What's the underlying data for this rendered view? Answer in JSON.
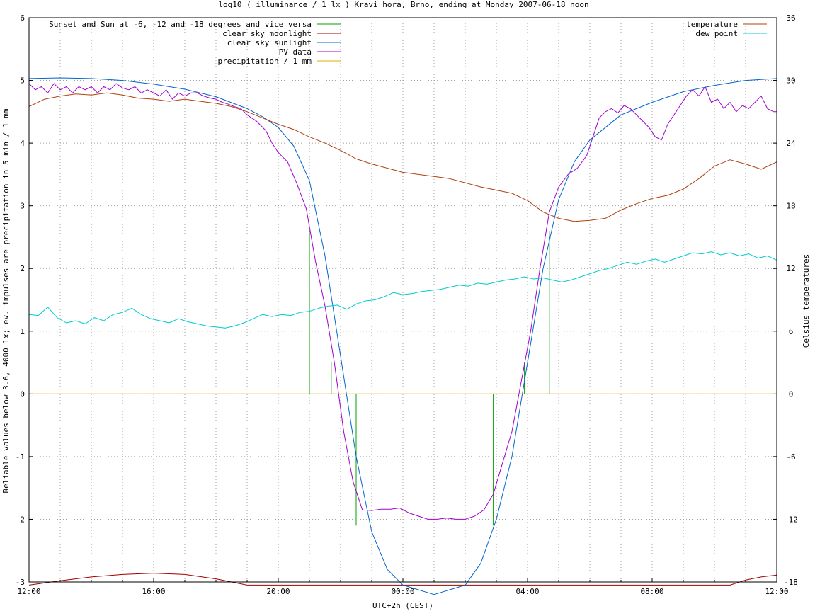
{
  "chart_data": {
    "type": "line",
    "title": "log10 ( illuminance / 1 lx ) Kravi hora, Brno, ending at Monday 2007-06-18 noon",
    "xlabel": "UTC+2h (CEST)",
    "ylabel": "Reliable values below 3.6, 4000 lx; ev. impulses are precipitation in 5 min / 1 mm",
    "y2label": "Celsius temperatures",
    "x_unit": "hours since 12:00 (displayed as clock time)",
    "xlim": [
      0,
      24
    ],
    "ylim": [
      -3,
      6
    ],
    "y2lim": [
      -18,
      36
    ],
    "grid": true,
    "x_ticks": [
      {
        "v": 0,
        "label": "12:00"
      },
      {
        "v": 4,
        "label": "16:00"
      },
      {
        "v": 8,
        "label": "20:00"
      },
      {
        "v": 12,
        "label": "00:00"
      },
      {
        "v": 16,
        "label": "04:00"
      },
      {
        "v": 20,
        "label": "08:00"
      },
      {
        "v": 24,
        "label": "12:00"
      }
    ],
    "y_ticks": [
      "6",
      "5",
      "4",
      "3",
      "2",
      "1",
      "0",
      "-1",
      "-2",
      "-3"
    ],
    "y2_ticks": [
      "36",
      "30",
      "24",
      "18",
      "12",
      "6",
      "0",
      "-6",
      "-12",
      "-18"
    ],
    "legend_left": [
      {
        "name": "Sunset and Sun at -6, -12 and -18 degrees and vice versa",
        "color": "#00a000"
      },
      {
        "name": "clear sky moonlight",
        "color": "#a00000"
      },
      {
        "name": "clear sky sunlight",
        "color": "#0066cc"
      },
      {
        "name": "PV data",
        "color": "#a000d0"
      },
      {
        "name": "precipitation / 1 mm",
        "color": "#e0b000"
      }
    ],
    "legend_right": [
      {
        "name": "temperature",
        "color": "#b04010"
      },
      {
        "name": "dew point",
        "color": "#00cccc"
      }
    ],
    "series": [
      {
        "key": "sun_events",
        "axis": "y1",
        "color": "#00a000",
        "style": "impulse",
        "points": [
          [
            9.0,
            2.6
          ],
          [
            9.7,
            0.5
          ],
          [
            10.5,
            -2.1
          ],
          [
            14.9,
            -2.1
          ],
          [
            15.9,
            0.5
          ],
          [
            16.7,
            2.6
          ]
        ]
      },
      {
        "key": "moonlight",
        "axis": "y1",
        "color": "#a00000",
        "points": [
          [
            0,
            -3.05
          ],
          [
            1,
            -2.98
          ],
          [
            2,
            -2.92
          ],
          [
            3,
            -2.88
          ],
          [
            4,
            -2.86
          ],
          [
            5,
            -2.88
          ],
          [
            6,
            -2.95
          ],
          [
            7,
            -3.05
          ],
          [
            22.5,
            -3.05
          ],
          [
            23,
            -2.97
          ],
          [
            23.5,
            -2.92
          ],
          [
            24,
            -2.89
          ]
        ]
      },
      {
        "key": "sunlight",
        "axis": "y1",
        "color": "#0066cc",
        "points": [
          [
            0,
            5.03
          ],
          [
            1,
            5.04
          ],
          [
            2,
            5.03
          ],
          [
            3,
            5.0
          ],
          [
            4,
            4.94
          ],
          [
            5,
            4.86
          ],
          [
            6,
            4.74
          ],
          [
            7,
            4.55
          ],
          [
            7.5,
            4.42
          ],
          [
            8,
            4.25
          ],
          [
            8.5,
            3.95
          ],
          [
            9,
            3.4
          ],
          [
            9.5,
            2.2
          ],
          [
            10,
            0.6
          ],
          [
            10.5,
            -1.0
          ],
          [
            11,
            -2.2
          ],
          [
            11.5,
            -2.8
          ],
          [
            12,
            -3.05
          ],
          [
            13,
            -3.2
          ],
          [
            14,
            -3.05
          ],
          [
            14.5,
            -2.7
          ],
          [
            15,
            -2.0
          ],
          [
            15.5,
            -1.0
          ],
          [
            16,
            0.5
          ],
          [
            16.5,
            2.0
          ],
          [
            17,
            3.1
          ],
          [
            17.5,
            3.7
          ],
          [
            18,
            4.05
          ],
          [
            19,
            4.45
          ],
          [
            20,
            4.65
          ],
          [
            21,
            4.82
          ],
          [
            22,
            4.92
          ],
          [
            23,
            5.0
          ],
          [
            24,
            5.03
          ]
        ]
      },
      {
        "key": "pv",
        "axis": "y1",
        "color": "#a000d0",
        "points": [
          [
            0,
            4.95
          ],
          [
            0.2,
            4.85
          ],
          [
            0.4,
            4.9
          ],
          [
            0.6,
            4.8
          ],
          [
            0.8,
            4.95
          ],
          [
            1,
            4.85
          ],
          [
            1.2,
            4.9
          ],
          [
            1.4,
            4.8
          ],
          [
            1.6,
            4.9
          ],
          [
            1.8,
            4.85
          ],
          [
            2,
            4.9
          ],
          [
            2.2,
            4.8
          ],
          [
            2.4,
            4.9
          ],
          [
            2.6,
            4.85
          ],
          [
            2.8,
            4.95
          ],
          [
            3,
            4.88
          ],
          [
            3.2,
            4.85
          ],
          [
            3.4,
            4.9
          ],
          [
            3.6,
            4.8
          ],
          [
            3.8,
            4.85
          ],
          [
            4,
            4.8
          ],
          [
            4.2,
            4.75
          ],
          [
            4.4,
            4.85
          ],
          [
            4.6,
            4.7
          ],
          [
            4.8,
            4.8
          ],
          [
            5,
            4.75
          ],
          [
            5.2,
            4.8
          ],
          [
            5.4,
            4.8
          ],
          [
            5.6,
            4.75
          ],
          [
            5.8,
            4.72
          ],
          [
            6,
            4.7
          ],
          [
            6.2,
            4.65
          ],
          [
            6.4,
            4.62
          ],
          [
            6.6,
            4.58
          ],
          [
            6.8,
            4.55
          ],
          [
            7,
            4.45
          ],
          [
            7.3,
            4.35
          ],
          [
            7.6,
            4.2
          ],
          [
            7.8,
            4.0
          ],
          [
            8,
            3.85
          ],
          [
            8.3,
            3.7
          ],
          [
            8.6,
            3.35
          ],
          [
            8.9,
            2.95
          ],
          [
            9.2,
            2.1
          ],
          [
            9.5,
            1.4
          ],
          [
            9.8,
            0.5
          ],
          [
            10.1,
            -0.6
          ],
          [
            10.4,
            -1.4
          ],
          [
            10.7,
            -1.85
          ],
          [
            11,
            -1.86
          ],
          [
            11.3,
            -1.84
          ],
          [
            11.6,
            -1.84
          ],
          [
            11.9,
            -1.82
          ],
          [
            12.2,
            -1.9
          ],
          [
            12.5,
            -1.95
          ],
          [
            12.8,
            -2.0
          ],
          [
            13.1,
            -2.0
          ],
          [
            13.4,
            -1.98
          ],
          [
            13.7,
            -2.0
          ],
          [
            14,
            -2.0
          ],
          [
            14.3,
            -1.95
          ],
          [
            14.6,
            -1.85
          ],
          [
            14.9,
            -1.6
          ],
          [
            15.2,
            -1.1
          ],
          [
            15.5,
            -0.6
          ],
          [
            15.8,
            0.2
          ],
          [
            16.1,
            1.0
          ],
          [
            16.4,
            2.0
          ],
          [
            16.7,
            2.9
          ],
          [
            17,
            3.3
          ],
          [
            17.3,
            3.5
          ],
          [
            17.6,
            3.6
          ],
          [
            17.9,
            3.8
          ],
          [
            18.1,
            4.1
          ],
          [
            18.3,
            4.4
          ],
          [
            18.5,
            4.5
          ],
          [
            18.7,
            4.55
          ],
          [
            18.9,
            4.48
          ],
          [
            19.1,
            4.6
          ],
          [
            19.3,
            4.55
          ],
          [
            19.5,
            4.45
          ],
          [
            19.7,
            4.35
          ],
          [
            19.9,
            4.25
          ],
          [
            20.1,
            4.1
          ],
          [
            20.3,
            4.05
          ],
          [
            20.5,
            4.3
          ],
          [
            20.7,
            4.45
          ],
          [
            20.9,
            4.6
          ],
          [
            21.1,
            4.75
          ],
          [
            21.3,
            4.85
          ],
          [
            21.5,
            4.75
          ],
          [
            21.7,
            4.9
          ],
          [
            21.9,
            4.65
          ],
          [
            22.1,
            4.7
          ],
          [
            22.3,
            4.55
          ],
          [
            22.5,
            4.65
          ],
          [
            22.7,
            4.5
          ],
          [
            22.9,
            4.6
          ],
          [
            23.1,
            4.55
          ],
          [
            23.3,
            4.65
          ],
          [
            23.5,
            4.75
          ],
          [
            23.7,
            4.55
          ],
          [
            23.9,
            4.5
          ],
          [
            24,
            4.5
          ]
        ]
      },
      {
        "key": "precipitation",
        "axis": "y1",
        "color": "#e0b000",
        "points": [
          [
            0,
            0
          ],
          [
            24,
            0
          ]
        ]
      },
      {
        "key": "temperature",
        "axis": "y2",
        "color": "#b04010",
        "points": [
          [
            0,
            27.5
          ],
          [
            0.5,
            28.2
          ],
          [
            1,
            28.5
          ],
          [
            1.5,
            28.7
          ],
          [
            2,
            28.6
          ],
          [
            2.5,
            28.8
          ],
          [
            3,
            28.6
          ],
          [
            3.5,
            28.3
          ],
          [
            4,
            28.2
          ],
          [
            4.5,
            28.0
          ],
          [
            5,
            28.2
          ],
          [
            5.5,
            28.0
          ],
          [
            6,
            27.8
          ],
          [
            6.5,
            27.5
          ],
          [
            7,
            27.0
          ],
          [
            7.5,
            26.4
          ],
          [
            8,
            25.8
          ],
          [
            8.5,
            25.3
          ],
          [
            9,
            24.6
          ],
          [
            9.5,
            24.0
          ],
          [
            10,
            23.3
          ],
          [
            10.5,
            22.5
          ],
          [
            11,
            22.0
          ],
          [
            11.5,
            21.6
          ],
          [
            12,
            21.2
          ],
          [
            12.5,
            21.0
          ],
          [
            13,
            20.8
          ],
          [
            13.5,
            20.6
          ],
          [
            14,
            20.2
          ],
          [
            14.5,
            19.8
          ],
          [
            15,
            19.5
          ],
          [
            15.5,
            19.2
          ],
          [
            16,
            18.5
          ],
          [
            16.5,
            17.4
          ],
          [
            17,
            16.8
          ],
          [
            17.5,
            16.5
          ],
          [
            18,
            16.6
          ],
          [
            18.5,
            16.8
          ],
          [
            19,
            17.6
          ],
          [
            19.5,
            18.2
          ],
          [
            20,
            18.7
          ],
          [
            20.5,
            19.0
          ],
          [
            21,
            19.6
          ],
          [
            21.5,
            20.6
          ],
          [
            22,
            21.8
          ],
          [
            22.5,
            22.4
          ],
          [
            23,
            22.0
          ],
          [
            23.5,
            21.5
          ],
          [
            24,
            22.2
          ]
        ]
      },
      {
        "key": "dew_point",
        "axis": "y2",
        "color": "#00cccc",
        "points": [
          [
            0,
            7.6
          ],
          [
            0.3,
            7.5
          ],
          [
            0.6,
            8.3
          ],
          [
            0.9,
            7.3
          ],
          [
            1.2,
            6.8
          ],
          [
            1.5,
            7.0
          ],
          [
            1.8,
            6.7
          ],
          [
            2.1,
            7.3
          ],
          [
            2.4,
            7.0
          ],
          [
            2.7,
            7.6
          ],
          [
            3,
            7.8
          ],
          [
            3.3,
            8.2
          ],
          [
            3.6,
            7.6
          ],
          [
            3.9,
            7.2
          ],
          [
            4.2,
            7.0
          ],
          [
            4.5,
            6.8
          ],
          [
            4.8,
            7.2
          ],
          [
            5.1,
            6.9
          ],
          [
            5.4,
            6.7
          ],
          [
            5.7,
            6.5
          ],
          [
            6,
            6.4
          ],
          [
            6.3,
            6.3
          ],
          [
            6.6,
            6.5
          ],
          [
            6.9,
            6.8
          ],
          [
            7.2,
            7.2
          ],
          [
            7.5,
            7.6
          ],
          [
            7.8,
            7.4
          ],
          [
            8.1,
            7.6
          ],
          [
            8.4,
            7.5
          ],
          [
            8.7,
            7.8
          ],
          [
            9,
            7.9
          ],
          [
            9.3,
            8.2
          ],
          [
            9.6,
            8.4
          ],
          [
            9.9,
            8.5
          ],
          [
            10.2,
            8.1
          ],
          [
            10.5,
            8.6
          ],
          [
            10.8,
            8.9
          ],
          [
            11.1,
            9.0
          ],
          [
            11.4,
            9.3
          ],
          [
            11.7,
            9.7
          ],
          [
            12,
            9.5
          ],
          [
            12.3,
            9.6
          ],
          [
            12.6,
            9.8
          ],
          [
            12.9,
            9.9
          ],
          [
            13.2,
            10.0
          ],
          [
            13.5,
            10.2
          ],
          [
            13.8,
            10.4
          ],
          [
            14.1,
            10.3
          ],
          [
            14.4,
            10.6
          ],
          [
            14.7,
            10.5
          ],
          [
            15,
            10.7
          ],
          [
            15.3,
            10.9
          ],
          [
            15.6,
            11.0
          ],
          [
            15.9,
            11.2
          ],
          [
            16.2,
            11.0
          ],
          [
            16.5,
            11.1
          ],
          [
            16.8,
            10.9
          ],
          [
            17.1,
            10.7
          ],
          [
            17.4,
            10.9
          ],
          [
            17.7,
            11.2
          ],
          [
            18,
            11.5
          ],
          [
            18.3,
            11.8
          ],
          [
            18.6,
            12.0
          ],
          [
            18.9,
            12.3
          ],
          [
            19.2,
            12.6
          ],
          [
            19.5,
            12.4
          ],
          [
            19.8,
            12.7
          ],
          [
            20.1,
            12.9
          ],
          [
            20.4,
            12.6
          ],
          [
            20.7,
            12.9
          ],
          [
            21,
            13.2
          ],
          [
            21.3,
            13.5
          ],
          [
            21.6,
            13.4
          ],
          [
            21.9,
            13.6
          ],
          [
            22.2,
            13.3
          ],
          [
            22.5,
            13.5
          ],
          [
            22.8,
            13.2
          ],
          [
            23.1,
            13.4
          ],
          [
            23.4,
            13.0
          ],
          [
            23.7,
            13.2
          ],
          [
            24,
            12.8
          ]
        ]
      }
    ]
  }
}
